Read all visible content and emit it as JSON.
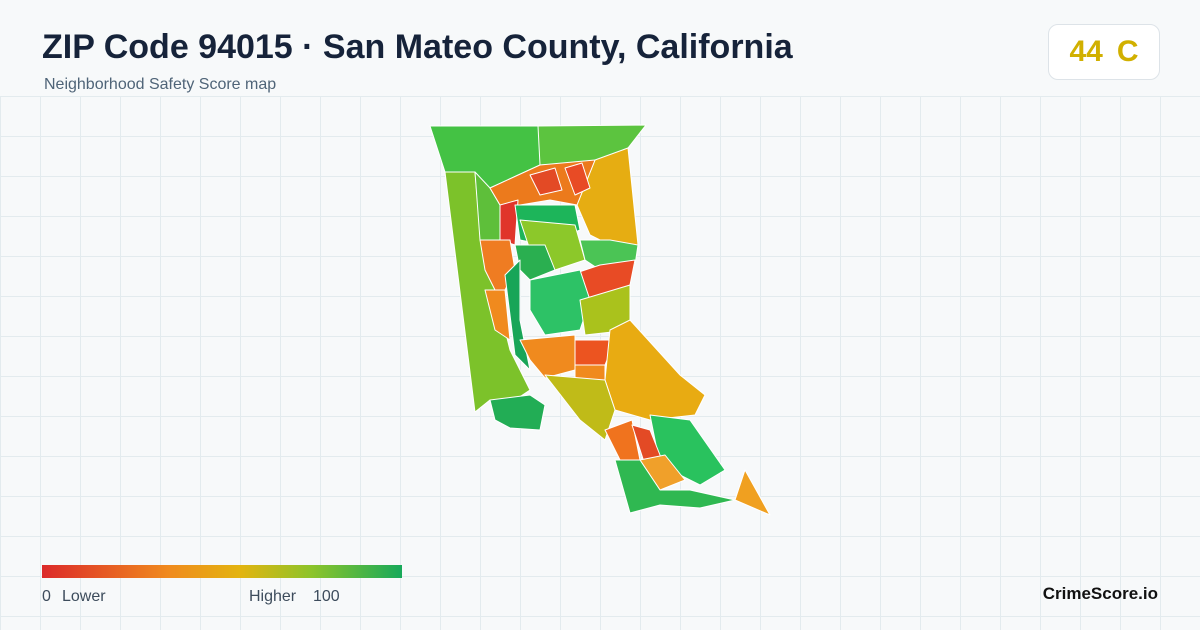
{
  "header": {
    "title": "ZIP Code 94015 · San Mateo County, California",
    "subtitle": "Neighborhood Safety Score map"
  },
  "score": {
    "value": 44,
    "grade": "C"
  },
  "legend": {
    "min": 0,
    "min_label": "Lower",
    "max_label": "Higher",
    "max": 100
  },
  "brand": "CrimeScore.io"
}
